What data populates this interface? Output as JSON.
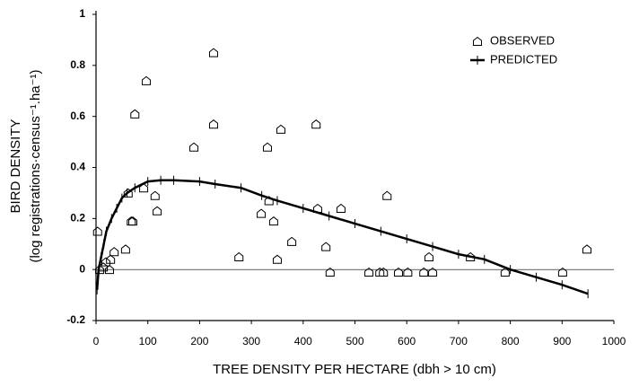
{
  "chart_data": {
    "type": "scatter",
    "x_label": "TREE DENSITY PER HECTARE (dbh > 10 cm)",
    "y_label": [
      "BIRD DENSITY",
      "(log registrations·census⁻¹.ha⁻¹)"
    ],
    "xlim": [
      0,
      1000
    ],
    "ylim": [
      -0.2,
      1
    ],
    "xticks": [
      0,
      100,
      200,
      300,
      400,
      500,
      600,
      700,
      800,
      900,
      1000
    ],
    "yticks": [
      -0.2,
      0,
      0.2,
      0.4,
      0.6,
      0.8,
      1
    ],
    "legend": "top-right",
    "series": [
      {
        "name": "OBSERVED",
        "type": "scatter",
        "color": "#000000",
        "x": [
          3,
          7,
          14,
          19,
          26,
          28,
          35,
          57,
          62,
          68,
          71,
          75,
          92,
          97,
          114,
          118,
          189,
          227,
          227,
          276,
          319,
          331,
          334,
          343,
          350,
          357,
          378,
          425,
          428,
          444,
          452,
          473,
          527,
          548,
          555,
          562,
          584,
          602,
          633,
          643,
          650,
          723,
          790,
          901,
          948
        ],
        "values": [
          0.15,
          0,
          0.01,
          0.03,
          0,
          0.04,
          0.07,
          0.08,
          0.3,
          0.19,
          0.19,
          0.61,
          0.32,
          0.74,
          0.29,
          0.23,
          0.48,
          0.85,
          0.57,
          0.05,
          0.22,
          0.48,
          0.27,
          0.19,
          0.04,
          0.55,
          0.11,
          0.57,
          0.24,
          0.09,
          -0.01,
          0.24,
          -0.01,
          -0.01,
          -0.01,
          0.29,
          -0.01,
          -0.01,
          -0.01,
          0.05,
          -0.01,
          0.05,
          -0.01,
          -0.01,
          0.08
        ]
      },
      {
        "name": "PREDICTED",
        "type": "line",
        "color": "#000000",
        "x": [
          2,
          5,
          10,
          15,
          20,
          30,
          40,
          50,
          60,
          75,
          100,
          125,
          150,
          200,
          230,
          280,
          320,
          350,
          400,
          450,
          500,
          550,
          600,
          650,
          700,
          750,
          800,
          850,
          900,
          950
        ],
        "values": [
          -0.08,
          0,
          0.05,
          0.1,
          0.15,
          0.2,
          0.24,
          0.28,
          0.3,
          0.32,
          0.345,
          0.35,
          0.35,
          0.345,
          0.335,
          0.32,
          0.29,
          0.27,
          0.24,
          0.21,
          0.18,
          0.15,
          0.12,
          0.09,
          0.06,
          0.04,
          0,
          -0.03,
          -0.06,
          -0.095
        ]
      }
    ]
  }
}
